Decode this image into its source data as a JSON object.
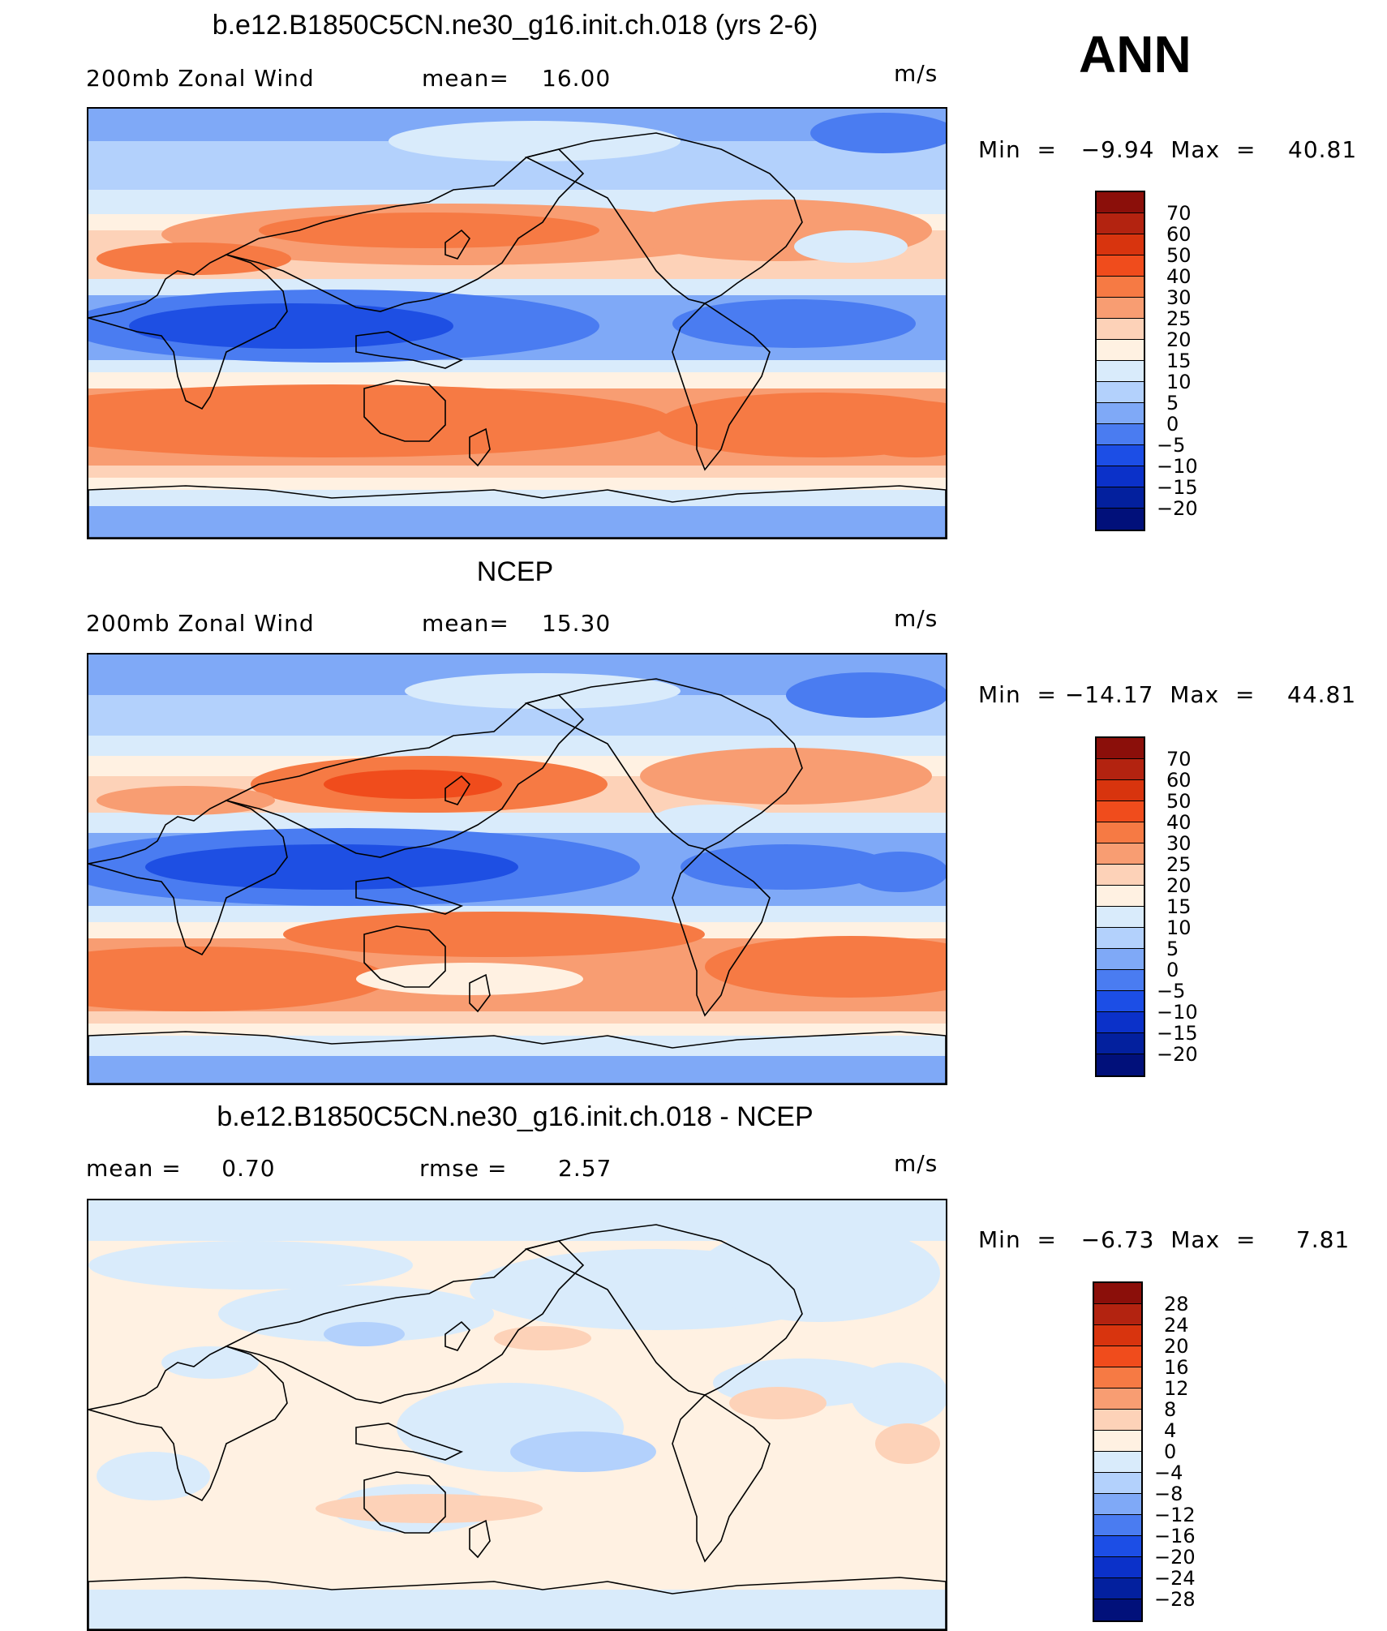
{
  "season": "ANN",
  "panels": [
    {
      "title": "b.e12.B1850C5CN.ne30_g16.init.ch.018 (yrs 2-6)",
      "left_label": "200mb Zonal Wind",
      "stat_label": "mean=",
      "stat_value": "16.00",
      "units": "m/s",
      "minmax_text": "Min  =   −9.94  Max  =    40.81",
      "colorbar_levels": [
        "70",
        "60",
        "50",
        "40",
        "30",
        "25",
        "20",
        "15",
        "10",
        "5",
        "0",
        "−5",
        "−10",
        "−15",
        "−20"
      ],
      "field": "model"
    },
    {
      "title": "NCEP",
      "left_label": "200mb Zonal Wind",
      "stat_label": "mean=",
      "stat_value": "15.30",
      "units": "m/s",
      "minmax_text": "Min  = −14.17  Max  =    44.81",
      "colorbar_levels": [
        "70",
        "60",
        "50",
        "40",
        "30",
        "25",
        "20",
        "15",
        "10",
        "5",
        "0",
        "−5",
        "−10",
        "−15",
        "−20"
      ],
      "field": "obs"
    },
    {
      "title": "b.e12.B1850C5CN.ne30_g16.init.ch.018 - NCEP",
      "left_label": "mean =     0.70",
      "stat_label": "rmse =",
      "stat_value": "2.57",
      "units": "m/s",
      "minmax_text": "Min  =   −6.73  Max  =     7.81",
      "colorbar_levels": [
        "28",
        "24",
        "20",
        "16",
        "12",
        "8",
        "4",
        "0",
        "−4",
        "−8",
        "−12",
        "−16",
        "−20",
        "−24",
        "−28"
      ],
      "field": "diff"
    }
  ],
  "colors": {
    "colorbar_16": [
      "#8b0f0a",
      "#b32310",
      "#d8340e",
      "#f04c1c",
      "#f67a44",
      "#f89d72",
      "#fdd2b8",
      "#fff1e2",
      "#d9ebfb",
      "#b3d1fc",
      "#7fa9f7",
      "#4a7cf1",
      "#1c4ee6",
      "#0b31c9",
      "#03209e",
      "#01107a"
    ],
    "map_levels": {
      "deep_blue": "#1e4fe3",
      "blue": "#4a7cf1",
      "mid_blue": "#7fa9f7",
      "light_blue": "#b3d1fc",
      "pale_blue": "#d9ebfb",
      "cream": "#fff1e2",
      "peach": "#fdd2b8",
      "salmon": "#f89d72",
      "orange": "#f67a44",
      "red_orange": "#f04c1c"
    }
  }
}
